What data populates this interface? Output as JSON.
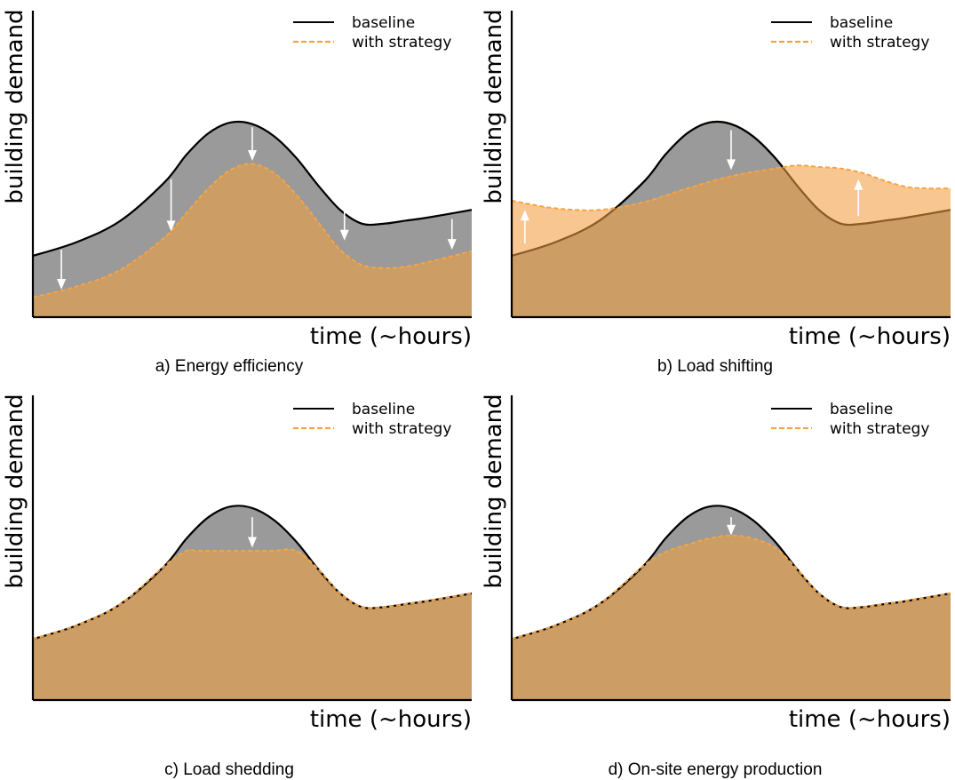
{
  "colors": {
    "baseline_line": "#000000",
    "baseline_fill": "#9a9a9a",
    "strategy_line": "#f5a444",
    "strategy_fill": "#cc9d65",
    "shift_fill": "#f8c690",
    "arrow": "#ffffff"
  },
  "legend": {
    "baseline": "baseline",
    "strategy": "with strategy"
  },
  "chart_data": [
    {
      "type": "area",
      "caption": "a) Energy efficiency",
      "xlabel": "time (~hours)",
      "ylabel": "building demand",
      "xlim": [
        0,
        10
      ],
      "ylim": [
        0,
        10
      ],
      "legend_position": "top-right",
      "grid": false,
      "series": [
        {
          "name": "baseline",
          "x": [
            0,
            1,
            2,
            3,
            3.5,
            4,
            4.5,
            5,
            5.5,
            6,
            6.5,
            7,
            7.5,
            8,
            8.5,
            9,
            10
          ],
          "y": [
            2.0,
            2.45,
            3.15,
            4.4,
            5.3,
            6.0,
            6.35,
            6.3,
            5.9,
            5.2,
            4.3,
            3.5,
            3.05,
            3.05,
            3.15,
            3.25,
            3.5
          ]
        },
        {
          "name": "with strategy",
          "x": [
            0,
            1,
            2,
            3,
            3.5,
            4,
            4.5,
            5,
            5.5,
            6,
            6.5,
            7,
            7.5,
            8,
            8.5,
            9,
            10
          ],
          "y": [
            0.65,
            1.0,
            1.55,
            2.6,
            3.4,
            4.2,
            4.8,
            5.0,
            4.7,
            4.0,
            3.1,
            2.2,
            1.7,
            1.6,
            1.65,
            1.8,
            2.15
          ]
        }
      ]
    },
    {
      "type": "area",
      "caption": "b) Load shifting",
      "xlabel": "time (~hours)",
      "ylabel": "building demand",
      "xlim": [
        0,
        10
      ],
      "ylim": [
        0,
        10
      ],
      "legend_position": "top-right",
      "grid": false,
      "series": [
        {
          "name": "baseline",
          "x": [
            0,
            1,
            2,
            3,
            3.5,
            4,
            4.5,
            5,
            5.5,
            6,
            6.5,
            7,
            7.5,
            8,
            8.5,
            9,
            10
          ],
          "y": [
            2.0,
            2.45,
            3.15,
            4.4,
            5.3,
            6.0,
            6.35,
            6.3,
            5.9,
            5.2,
            4.3,
            3.5,
            3.05,
            3.05,
            3.15,
            3.25,
            3.5
          ]
        },
        {
          "name": "with strategy",
          "x": [
            0,
            1,
            2,
            3,
            4,
            5,
            6,
            6.5,
            7,
            7.5,
            8,
            8.5,
            9,
            9.5,
            10
          ],
          "y": [
            3.8,
            3.55,
            3.5,
            3.75,
            4.2,
            4.6,
            4.85,
            4.95,
            4.9,
            4.85,
            4.7,
            4.45,
            4.25,
            4.2,
            4.2
          ]
        }
      ]
    },
    {
      "type": "area",
      "caption": "c) Load shedding",
      "xlabel": "time (~hours)",
      "ylabel": "building demand",
      "xlim": [
        0,
        10
      ],
      "ylim": [
        0,
        10
      ],
      "legend_position": "top-right",
      "grid": false,
      "series": [
        {
          "name": "baseline",
          "x": [
            0,
            1,
            2,
            3,
            3.5,
            4,
            4.5,
            5,
            5.5,
            6,
            6.5,
            7,
            7.5,
            8,
            8.5,
            9,
            10
          ],
          "y": [
            2.0,
            2.45,
            3.15,
            4.4,
            5.3,
            6.0,
            6.35,
            6.3,
            5.9,
            5.2,
            4.3,
            3.5,
            3.05,
            3.05,
            3.15,
            3.25,
            3.5
          ]
        },
        {
          "name": "with strategy",
          "x": [
            0,
            1,
            2,
            3,
            3.5,
            3.7,
            4,
            4.5,
            5,
            5.5,
            6,
            6.5,
            7,
            7.5,
            8,
            8.5,
            9,
            10
          ],
          "y": [
            2.0,
            2.45,
            3.15,
            4.4,
            4.9,
            4.9,
            4.9,
            4.9,
            4.9,
            4.9,
            4.9,
            4.3,
            3.5,
            3.05,
            3.05,
            3.15,
            3.25,
            3.5
          ]
        }
      ]
    },
    {
      "type": "area",
      "caption": "d) On-site energy production",
      "xlabel": "time (~hours)",
      "ylabel": "building demand",
      "xlim": [
        0,
        10
      ],
      "ylim": [
        0,
        10
      ],
      "legend_position": "top-right",
      "grid": false,
      "series": [
        {
          "name": "baseline",
          "x": [
            0,
            1,
            2,
            3,
            3.5,
            4,
            4.5,
            5,
            5.5,
            6,
            6.5,
            7,
            7.5,
            8,
            8.5,
            9,
            10
          ],
          "y": [
            2.0,
            2.45,
            3.15,
            4.4,
            5.3,
            6.0,
            6.35,
            6.3,
            5.9,
            5.2,
            4.3,
            3.5,
            3.05,
            3.05,
            3.15,
            3.25,
            3.5
          ]
        },
        {
          "name": "with strategy",
          "x": [
            0,
            1,
            2,
            3,
            3.5,
            4,
            4.5,
            5,
            5.5,
            6,
            6.5,
            7,
            7.5,
            8,
            8.5,
            9,
            10
          ],
          "y": [
            2.0,
            2.45,
            3.15,
            4.4,
            4.85,
            5.1,
            5.3,
            5.4,
            5.3,
            5.0,
            4.3,
            3.5,
            3.05,
            3.05,
            3.15,
            3.25,
            3.5
          ]
        }
      ]
    }
  ],
  "arrows": [
    [
      {
        "x": 0.65,
        "from": 2.2,
        "to": 0.9
      },
      {
        "x": 3.15,
        "from": 4.5,
        "to": 2.8
      },
      {
        "x": 5.0,
        "from": 6.2,
        "to": 5.1
      },
      {
        "x": 7.1,
        "from": 3.5,
        "to": 2.5
      },
      {
        "x": 9.55,
        "from": 3.2,
        "to": 2.2
      }
    ],
    [
      {
        "x": 0.3,
        "from": 2.4,
        "to": 3.5
      },
      {
        "x": 5.0,
        "from": 6.1,
        "to": 4.8
      },
      {
        "x": 7.9,
        "from": 3.3,
        "to": 4.5
      }
    ],
    [
      {
        "x": 5.0,
        "from": 6.0,
        "to": 5.0
      }
    ],
    [
      {
        "x": 5.0,
        "from": 6.0,
        "to": 5.4
      }
    ]
  ]
}
